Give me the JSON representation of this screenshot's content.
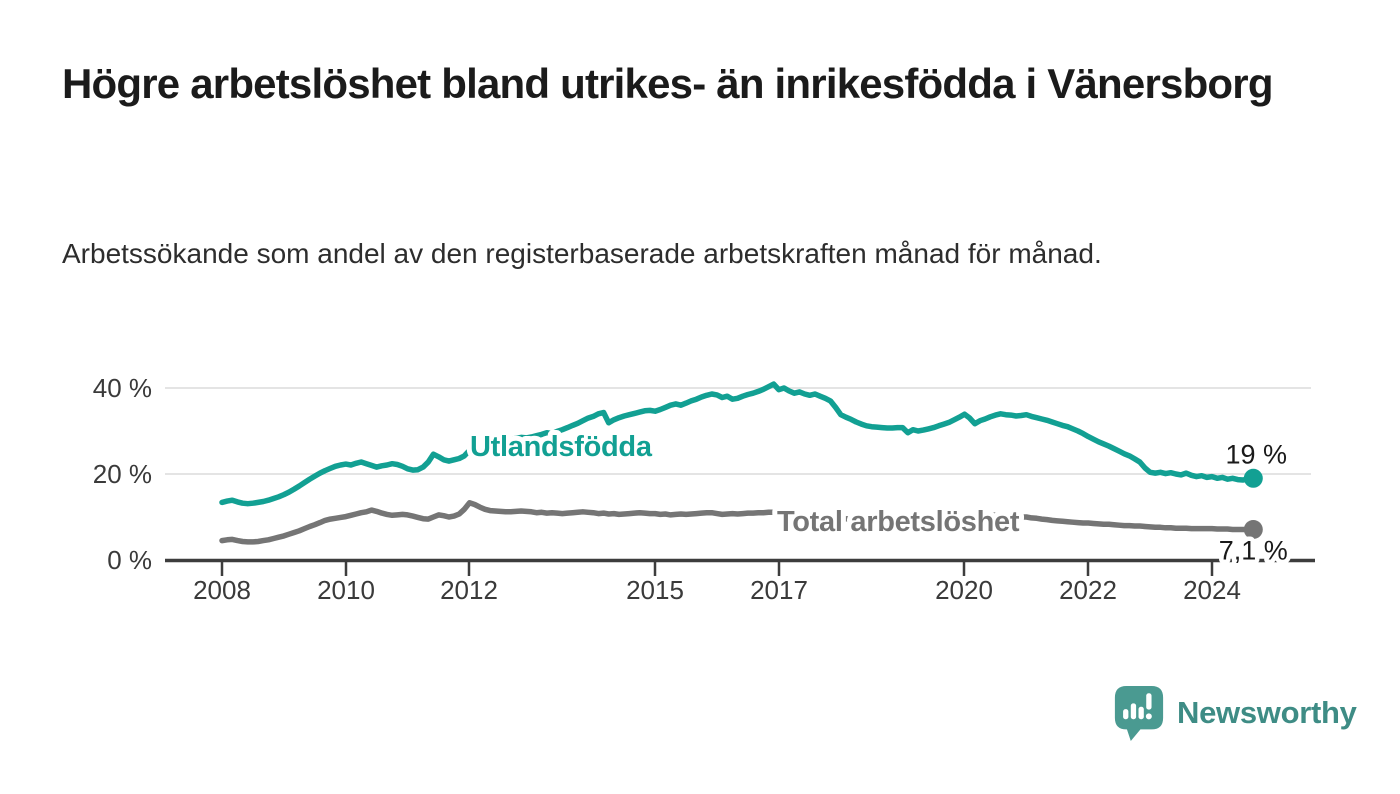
{
  "header": {
    "title": "Högre arbetslöshet bland utrikes- än inrikesfödda i Vänersborg",
    "subtitle": "Arbetssökande som andel av den registerbaserade arbetskraften månad för månad."
  },
  "chart_data": {
    "type": "line",
    "x_start": {
      "year": 2008,
      "month": 1
    },
    "x_end": {
      "year": 2024,
      "month": 9
    },
    "x_interval": "monthly",
    "x_tick_years": [
      "2008",
      "2010",
      "2012",
      "2015",
      "2017",
      "2020",
      "2022",
      "2024"
    ],
    "y_ticks": [
      {
        "value": 0,
        "label": "0 %"
      },
      {
        "value": 20,
        "label": "20 %"
      },
      {
        "value": 40,
        "label": "40 %"
      }
    ],
    "ylim": [
      0,
      43
    ],
    "grid": "horizontal",
    "gridline_color": "#dcdcdc",
    "axis_color": "#3d3d3d",
    "series": [
      {
        "name": "Utlandsfödda",
        "color": "#12a093",
        "end_label": "19 %",
        "end_value": 19.0,
        "values": [
          13.4,
          13.7,
          13.9,
          13.5,
          13.2,
          13.1,
          13.2,
          13.4,
          13.6,
          13.9,
          14.3,
          14.7,
          15.2,
          15.8,
          16.5,
          17.2,
          18.0,
          18.8,
          19.5,
          20.2,
          20.8,
          21.3,
          21.8,
          22.1,
          22.3,
          22.1,
          22.5,
          22.8,
          22.4,
          22.0,
          21.6,
          21.9,
          22.1,
          22.4,
          22.2,
          21.8,
          21.2,
          20.9,
          21.0,
          21.6,
          22.8,
          24.6,
          24.0,
          23.3,
          23.0,
          23.3,
          23.6,
          24.2,
          25.5,
          27.6,
          27.1,
          26.8,
          27.2,
          27.5,
          27.2,
          27.6,
          28.0,
          28.3,
          28.5,
          28.4,
          28.6,
          28.9,
          29.2,
          29.6,
          29.4,
          29.9,
          30.3,
          30.8,
          31.3,
          31.8,
          32.4,
          33.0,
          33.4,
          34.0,
          34.3,
          31.9,
          32.6,
          33.1,
          33.5,
          33.8,
          34.1,
          34.4,
          34.7,
          34.8,
          34.6,
          35.0,
          35.5,
          36.0,
          36.3,
          36.0,
          36.5,
          37.0,
          37.4,
          37.9,
          38.3,
          38.6,
          38.4,
          37.8,
          38.1,
          37.4,
          37.6,
          38.1,
          38.5,
          38.8,
          39.2,
          39.7,
          40.3,
          40.9,
          39.6,
          40.0,
          39.3,
          38.8,
          39.1,
          38.6,
          38.3,
          38.6,
          38.1,
          37.6,
          37.0,
          35.5,
          33.8,
          33.2,
          32.7,
          32.1,
          31.6,
          31.2,
          31.0,
          30.9,
          30.8,
          30.7,
          30.7,
          30.8,
          30.8,
          29.6,
          30.3,
          30.0,
          30.2,
          30.5,
          30.8,
          31.2,
          31.6,
          32.0,
          32.6,
          33.2,
          33.9,
          33.0,
          31.7,
          32.4,
          32.8,
          33.3,
          33.7,
          34.0,
          33.8,
          33.7,
          33.5,
          33.6,
          33.8,
          33.4,
          33.1,
          32.8,
          32.5,
          32.1,
          31.7,
          31.3,
          31.0,
          30.5,
          30.0,
          29.4,
          28.7,
          28.1,
          27.5,
          27.0,
          26.5,
          25.9,
          25.3,
          24.7,
          24.2,
          23.5,
          22.8,
          21.4,
          20.4,
          20.2,
          20.4,
          20.1,
          20.3,
          20.0,
          19.8,
          20.2,
          19.7,
          19.4,
          19.6,
          19.2,
          19.4,
          19.0,
          19.2,
          18.8,
          19.0,
          18.7,
          18.6,
          18.8,
          19.0
        ]
      },
      {
        "name": "Total arbetslöshet",
        "color": "#757575",
        "end_label": "7,1 %",
        "end_value": 7.1,
        "values": [
          4.5,
          4.7,
          4.8,
          4.5,
          4.3,
          4.2,
          4.2,
          4.3,
          4.5,
          4.7,
          5.0,
          5.3,
          5.6,
          6.0,
          6.4,
          6.8,
          7.3,
          7.8,
          8.2,
          8.7,
          9.2,
          9.5,
          9.7,
          9.9,
          10.1,
          10.4,
          10.7,
          11.0,
          11.2,
          11.6,
          11.3,
          10.9,
          10.6,
          10.4,
          10.5,
          10.6,
          10.5,
          10.2,
          9.9,
          9.6,
          9.5,
          10.0,
          10.5,
          10.3,
          10.0,
          10.2,
          10.7,
          11.8,
          13.3,
          12.9,
          12.3,
          11.8,
          11.5,
          11.4,
          11.3,
          11.2,
          11.2,
          11.3,
          11.4,
          11.3,
          11.2,
          11.0,
          11.1,
          10.9,
          11.0,
          10.9,
          10.8,
          10.9,
          11.0,
          11.1,
          11.2,
          11.1,
          11.0,
          10.8,
          10.9,
          10.7,
          10.8,
          10.6,
          10.7,
          10.8,
          10.9,
          11.0,
          10.9,
          10.8,
          10.8,
          10.6,
          10.7,
          10.5,
          10.6,
          10.7,
          10.6,
          10.7,
          10.8,
          10.9,
          11.0,
          11.0,
          10.8,
          10.6,
          10.7,
          10.8,
          10.7,
          10.8,
          10.9,
          10.9,
          11.0,
          11.0,
          11.1,
          11.1,
          11.0,
          10.8,
          10.6,
          10.7,
          10.5,
          10.4,
          10.6,
          10.5,
          10.3,
          10.2,
          10.0,
          9.9,
          9.8,
          9.6,
          9.5,
          9.4,
          9.3,
          9.2,
          9.2,
          9.1,
          9.1,
          9.1,
          9.2,
          9.2,
          9.2,
          9.1,
          9.0,
          9.1,
          9.0,
          9.0,
          9.1,
          9.0,
          9.1,
          9.2,
          9.3,
          9.4,
          9.5,
          9.4,
          9.8,
          10.2,
          10.4,
          10.5,
          10.4,
          10.3,
          10.3,
          10.2,
          10.1,
          10.0,
          10.0,
          9.8,
          9.7,
          9.5,
          9.4,
          9.2,
          9.1,
          9.0,
          8.9,
          8.8,
          8.7,
          8.6,
          8.6,
          8.5,
          8.4,
          8.3,
          8.3,
          8.2,
          8.1,
          8.0,
          8.0,
          7.9,
          7.9,
          7.8,
          7.7,
          7.6,
          7.6,
          7.5,
          7.5,
          7.4,
          7.4,
          7.4,
          7.3,
          7.3,
          7.3,
          7.3,
          7.3,
          7.2,
          7.2,
          7.2,
          7.1,
          7.1,
          7.1,
          7.1,
          7.1
        ]
      }
    ]
  },
  "footer": {
    "brand": "Newsworthy",
    "logo_icon": "speech-bubble-bar-chart-icon",
    "brand_text_color": "#3e8c85",
    "icon_color": "#4a9a91"
  }
}
